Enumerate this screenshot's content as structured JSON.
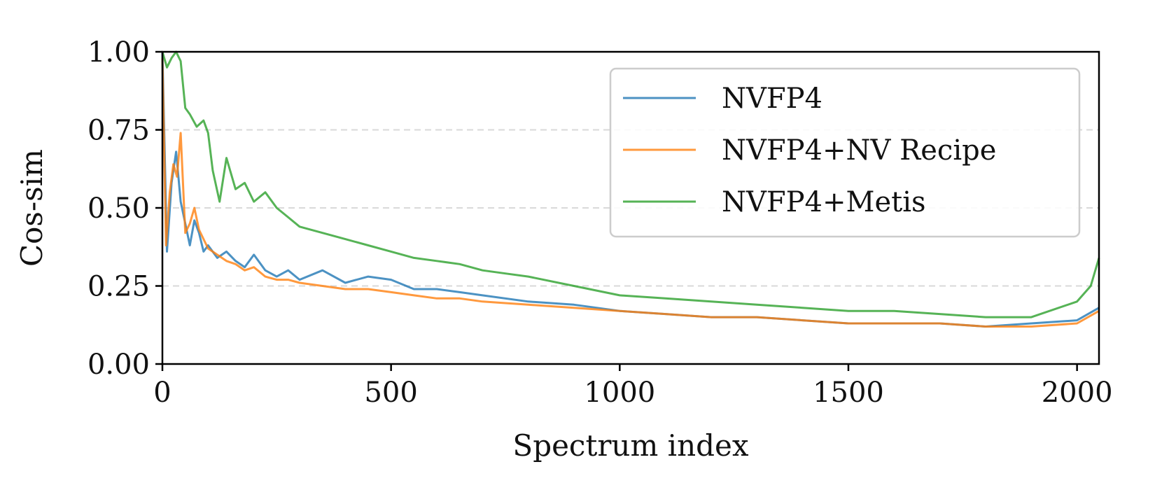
{
  "chart_data": {
    "type": "line",
    "title": "",
    "xlabel": "Spectrum index",
    "ylabel": "Cos-sim",
    "xlim": [
      0,
      2048
    ],
    "ylim": [
      0,
      1
    ],
    "x_ticks": [
      0,
      500,
      1000,
      1500,
      2000
    ],
    "y_ticks": [
      0,
      0.25,
      0.5,
      0.75,
      1
    ],
    "x_tick_labels": [
      "0",
      "500",
      "1000",
      "1500",
      "2000"
    ],
    "y_tick_labels": [
      "0.00",
      "0.25",
      "0.50",
      "0.75",
      "1.00"
    ],
    "grid": "horizontal dashed",
    "legend_position": "top-right",
    "series": [
      {
        "name": "NVFP4",
        "color": "#1f77b4",
        "x": [
          0,
          10,
          20,
          30,
          40,
          50,
          60,
          70,
          80,
          90,
          100,
          120,
          140,
          160,
          180,
          200,
          225,
          250,
          275,
          300,
          350,
          400,
          450,
          500,
          550,
          600,
          650,
          700,
          800,
          900,
          1000,
          1100,
          1200,
          1300,
          1400,
          1500,
          1600,
          1700,
          1800,
          1900,
          2000,
          2048
        ],
        "values": [
          1.0,
          0.36,
          0.58,
          0.68,
          0.52,
          0.45,
          0.38,
          0.46,
          0.42,
          0.36,
          0.38,
          0.34,
          0.36,
          0.33,
          0.31,
          0.35,
          0.3,
          0.28,
          0.3,
          0.27,
          0.3,
          0.26,
          0.28,
          0.27,
          0.24,
          0.24,
          0.23,
          0.22,
          0.2,
          0.19,
          0.17,
          0.16,
          0.15,
          0.15,
          0.14,
          0.13,
          0.13,
          0.13,
          0.12,
          0.13,
          0.14,
          0.18
        ]
      },
      {
        "name": "NVFP4+NV Recipe",
        "color": "#ff7f0e",
        "x": [
          0,
          8,
          16,
          24,
          32,
          40,
          50,
          60,
          70,
          80,
          90,
          100,
          120,
          140,
          160,
          180,
          200,
          225,
          250,
          275,
          300,
          350,
          400,
          450,
          500,
          550,
          600,
          650,
          700,
          800,
          900,
          1000,
          1100,
          1200,
          1300,
          1400,
          1500,
          1600,
          1700,
          1800,
          1900,
          2000,
          2048
        ],
        "values": [
          0.98,
          0.38,
          0.55,
          0.64,
          0.6,
          0.74,
          0.42,
          0.45,
          0.5,
          0.43,
          0.4,
          0.37,
          0.35,
          0.33,
          0.32,
          0.3,
          0.31,
          0.28,
          0.27,
          0.27,
          0.26,
          0.25,
          0.24,
          0.24,
          0.23,
          0.22,
          0.21,
          0.21,
          0.2,
          0.19,
          0.18,
          0.17,
          0.16,
          0.15,
          0.15,
          0.14,
          0.13,
          0.13,
          0.13,
          0.12,
          0.12,
          0.13,
          0.17
        ]
      },
      {
        "name": "NVFP4+Metis",
        "color": "#2ca02c",
        "x": [
          0,
          10,
          20,
          30,
          40,
          50,
          60,
          75,
          90,
          100,
          110,
          125,
          140,
          160,
          180,
          200,
          225,
          250,
          275,
          300,
          350,
          400,
          450,
          500,
          550,
          600,
          650,
          700,
          750,
          800,
          900,
          1000,
          1100,
          1200,
          1300,
          1400,
          1500,
          1600,
          1700,
          1800,
          1900,
          2000,
          2030,
          2048
        ],
        "values": [
          1.0,
          0.95,
          0.98,
          1.0,
          0.97,
          0.82,
          0.8,
          0.76,
          0.78,
          0.74,
          0.62,
          0.52,
          0.66,
          0.56,
          0.58,
          0.52,
          0.55,
          0.5,
          0.47,
          0.44,
          0.42,
          0.4,
          0.38,
          0.36,
          0.34,
          0.33,
          0.32,
          0.3,
          0.29,
          0.28,
          0.25,
          0.22,
          0.21,
          0.2,
          0.19,
          0.18,
          0.17,
          0.17,
          0.16,
          0.15,
          0.15,
          0.2,
          0.25,
          0.34
        ]
      }
    ]
  }
}
